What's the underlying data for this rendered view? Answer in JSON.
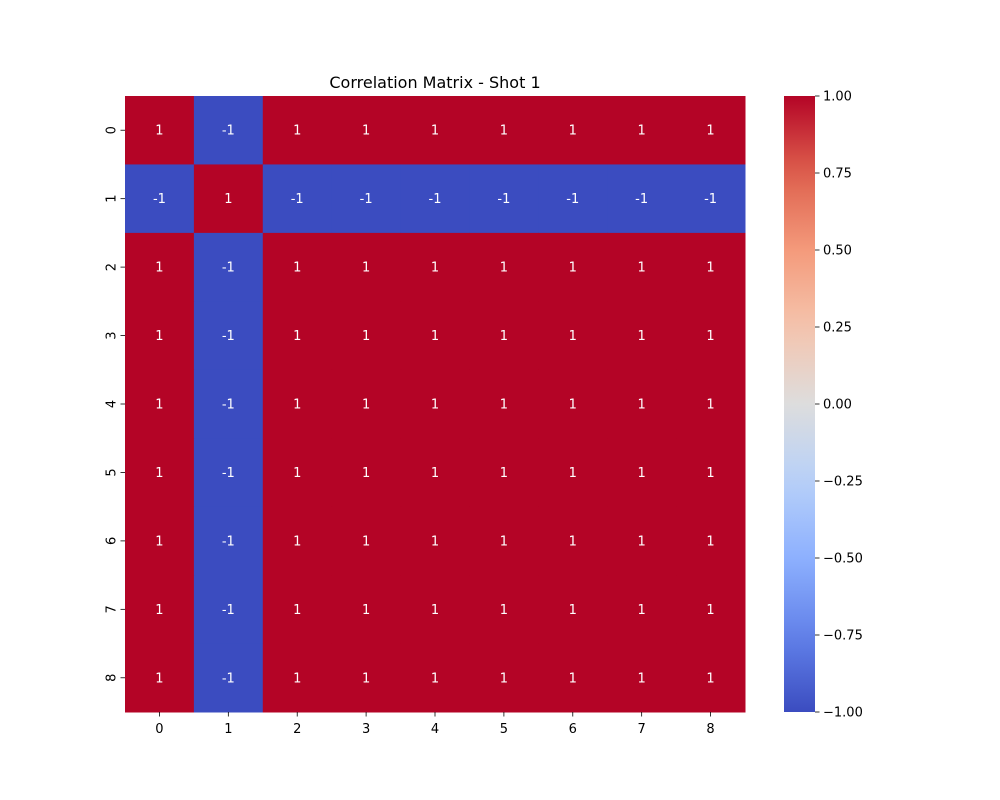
{
  "chart_data": {
    "type": "heatmap",
    "title": "Correlation Matrix - Shot 1",
    "xlabel": "",
    "ylabel": "",
    "x_categories": [
      "0",
      "1",
      "2",
      "3",
      "4",
      "5",
      "6",
      "7",
      "8"
    ],
    "y_categories": [
      "0",
      "1",
      "2",
      "3",
      "4",
      "5",
      "6",
      "7",
      "8"
    ],
    "values": [
      [
        1,
        -1,
        1,
        1,
        1,
        1,
        1,
        1,
        1
      ],
      [
        -1,
        1,
        -1,
        -1,
        -1,
        -1,
        -1,
        -1,
        -1
      ],
      [
        1,
        -1,
        1,
        1,
        1,
        1,
        1,
        1,
        1
      ],
      [
        1,
        -1,
        1,
        1,
        1,
        1,
        1,
        1,
        1
      ],
      [
        1,
        -1,
        1,
        1,
        1,
        1,
        1,
        1,
        1
      ],
      [
        1,
        -1,
        1,
        1,
        1,
        1,
        1,
        1,
        1
      ],
      [
        1,
        -1,
        1,
        1,
        1,
        1,
        1,
        1,
        1
      ],
      [
        1,
        -1,
        1,
        1,
        1,
        1,
        1,
        1,
        1
      ],
      [
        1,
        -1,
        1,
        1,
        1,
        1,
        1,
        1,
        1
      ]
    ],
    "annotations": true,
    "colormap": "coolwarm",
    "vmin": -1.0,
    "vmax": 1.0,
    "colorbar_ticks": [
      "−1.00",
      "−0.75",
      "−0.50",
      "−0.25",
      "0.00",
      "0.25",
      "0.50",
      "0.75",
      "1.00"
    ],
    "colorbar_tick_values": [
      -1.0,
      -0.75,
      -0.5,
      -0.25,
      0.0,
      0.25,
      0.5,
      0.75,
      1.0
    ],
    "colorbar_position": "right",
    "grid": false,
    "colors": {
      "positive": "#b40426",
      "negative": "#3b4cc0",
      "neutral": "#dddddd"
    }
  }
}
